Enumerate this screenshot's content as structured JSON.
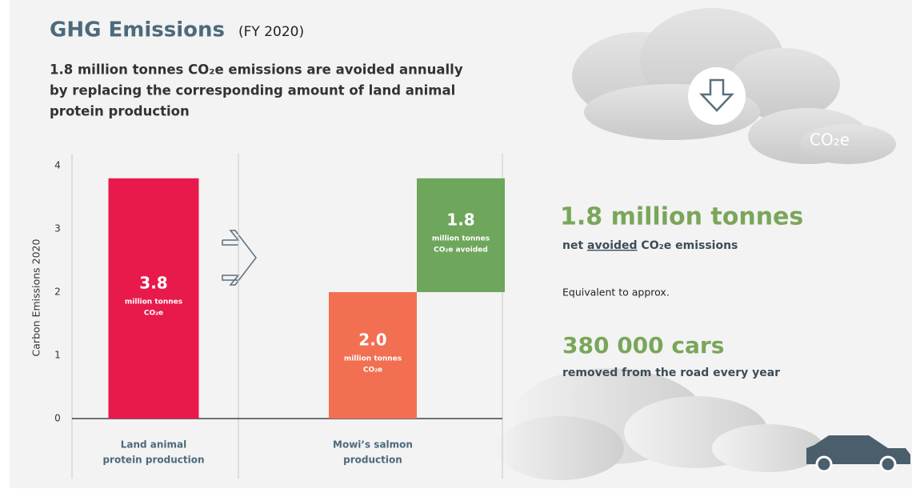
{
  "header": {
    "title": "GHG Emissions",
    "subtitle": "(FY 2020)",
    "lead": [
      "1.8 million tonnes CO₂e emissions are avoided annually",
      "by replacing the corresponding amount of land animal",
      "protein production"
    ]
  },
  "chart_data": {
    "type": "bar",
    "categories": [
      [
        "Land animal",
        "protein production"
      ],
      [
        "Mowi’s salmon",
        "production"
      ]
    ],
    "ylabel": "Carbon Emissions 2020",
    "ylim": [
      0,
      4
    ],
    "yticks": [
      0,
      1,
      2,
      3,
      4
    ],
    "grid": false,
    "series": [
      {
        "values": [
          3.8,
          2.0
        ],
        "colors": [
          "#e8194b",
          "#f26f52"
        ],
        "value_labels": [
          "3.8",
          "2.0"
        ],
        "unit_labels": [
          [
            "million tonnes",
            "CO₂e"
          ],
          [
            "million tonnes",
            "CO₂e"
          ]
        ]
      },
      {
        "values": [
          null,
          1.8
        ],
        "colors": [
          null,
          "#6ea65c"
        ],
        "value_labels": [
          null,
          "1.8"
        ],
        "unit_labels": [
          null,
          [
            "million tonnes",
            "CO₂e avoided"
          ]
        ]
      }
    ]
  },
  "panel": {
    "cloud_label": "CO₂e",
    "headline": "1.8 million tonnes",
    "headline_sub": [
      "net ",
      "avoided",
      " CO₂e emissions"
    ],
    "equivalent": "Equivalent to approx.",
    "cars": "380 000 cars",
    "cars_sub": "removed from the road every year"
  }
}
